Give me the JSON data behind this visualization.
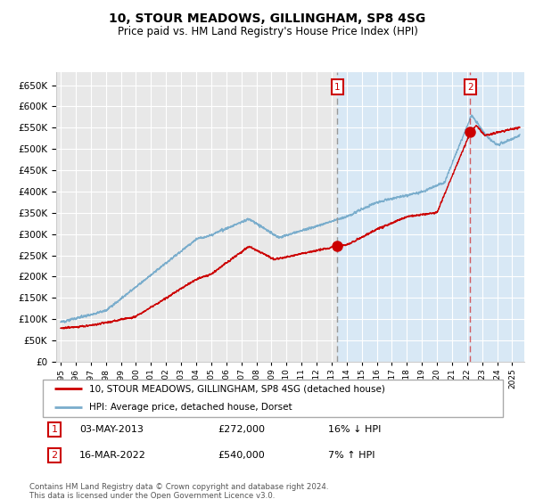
{
  "title": "10, STOUR MEADOWS, GILLINGHAM, SP8 4SG",
  "subtitle": "Price paid vs. HM Land Registry's House Price Index (HPI)",
  "legend_label_red": "10, STOUR MEADOWS, GILLINGHAM, SP8 4SG (detached house)",
  "legend_label_blue": "HPI: Average price, detached house, Dorset",
  "annotation1_label": "1",
  "annotation1_date": "03-MAY-2013",
  "annotation1_price": "£272,000",
  "annotation1_info": "16% ↓ HPI",
  "annotation2_label": "2",
  "annotation2_date": "16-MAR-2022",
  "annotation2_price": "£540,000",
  "annotation2_info": "7% ↑ HPI",
  "footer1": "Contains HM Land Registry data © Crown copyright and database right 2024.",
  "footer2": "This data is licensed under the Open Government Licence v3.0.",
  "xmin": 1994.7,
  "xmax": 2025.8,
  "ymin": 0,
  "ymax": 680000,
  "yticks": [
    0,
    50000,
    100000,
    150000,
    200000,
    250000,
    300000,
    350000,
    400000,
    450000,
    500000,
    550000,
    600000,
    650000
  ],
  "pre_shade_color": "#e8e8e8",
  "post_shade_color": "#d8e8f5",
  "red_color": "#cc0000",
  "blue_color": "#7aadcc",
  "vline1_x": 2013.37,
  "vline2_x": 2022.21,
  "dot1_x": 2013.37,
  "dot1_y": 272000,
  "dot2_x": 2022.21,
  "dot2_y": 540000,
  "shade_boundary": 2013.37
}
